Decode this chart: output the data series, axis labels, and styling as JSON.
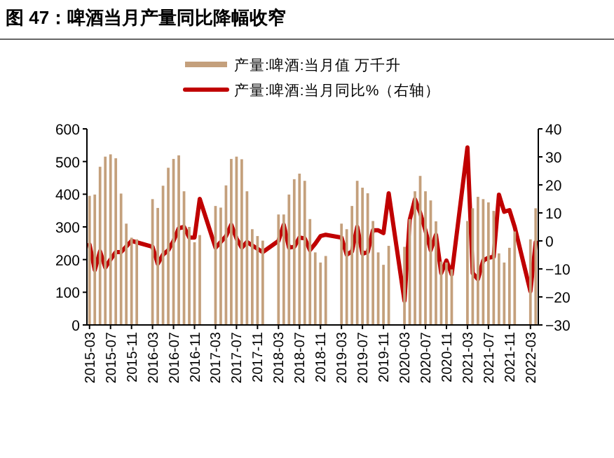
{
  "chart_data": {
    "type": "bar",
    "title": "图 47：啤酒当月产量同比降幅收窄",
    "categories": [
      "2015-03",
      null,
      null,
      null,
      "2015-07",
      null,
      null,
      null,
      "2015-11",
      null,
      null,
      null,
      "2016-03",
      null,
      null,
      null,
      "2016-07",
      null,
      null,
      null,
      "2016-11",
      null,
      null,
      null,
      "2017-03",
      null,
      null,
      null,
      "2017-07",
      null,
      null,
      null,
      "2017-11",
      null,
      null,
      null,
      "2018-03",
      null,
      null,
      null,
      "2018-07",
      null,
      null,
      null,
      "2018-11",
      null,
      null,
      null,
      "2019-03",
      null,
      null,
      null,
      "2019-07",
      null,
      null,
      null,
      "2019-11",
      null,
      null,
      null,
      "2020-03",
      null,
      null,
      null,
      "2020-07",
      null,
      null,
      null,
      "2020-11",
      null,
      null,
      null,
      "2021-03",
      null,
      null,
      null,
      "2021-07",
      null,
      null,
      null,
      "2021-11",
      null,
      null,
      null,
      "2022-03",
      null
    ],
    "series": [
      {
        "name": "产量:啤酒:当月值 万千升",
        "color": "#c4a07c",
        "values": [
          395,
          399,
          484,
          515,
          522,
          510,
          402,
          310,
          267,
          262,
          null,
          null,
          385,
          358,
          426,
          481,
          508,
          519,
          409,
          300,
          253,
          275,
          null,
          null,
          364,
          359,
          427,
          508,
          515,
          507,
          409,
          293,
          272,
          258,
          null,
          null,
          338,
          338,
          399,
          446,
          463,
          441,
          324,
          222,
          191,
          211,
          null,
          null,
          310,
          293,
          364,
          441,
          420,
          403,
          318,
          222,
          184,
          242,
          null,
          null,
          239,
          324,
          409,
          456,
          409,
          381,
          317,
          194,
          191,
          170,
          null,
          null,
          318,
          357,
          392,
          385,
          375,
          349,
          219,
          191,
          236,
          286,
          null,
          null,
          262,
          357
        ]
      },
      {
        "name": "产量:啤酒:当月同比%（右轴）",
        "type": "line",
        "axis": "y2",
        "color": "#c00000",
        "values": [
          -1.3,
          -10.4,
          -3.7,
          -9.5,
          -6.6,
          -4,
          -4,
          -2,
          0,
          -0.5,
          null,
          null,
          -2.1,
          -8.2,
          -4.9,
          -3.3,
          0,
          4.5,
          5,
          1.2,
          1.2,
          15,
          null,
          null,
          -2.4,
          -0.4,
          1.7,
          5.8,
          0.9,
          -2.4,
          -0.4,
          -1.6,
          -2.8,
          -4,
          null,
          null,
          0,
          5.8,
          -2.4,
          -2.1,
          1.2,
          0.9,
          -3.3,
          -1,
          1.7,
          2.2,
          null,
          null,
          1.2,
          -4.9,
          -3.8,
          5,
          -4.6,
          -4,
          3.8,
          3.8,
          2.8,
          17,
          null,
          null,
          -21.4,
          7.5,
          14.9,
          10,
          3.7,
          -3.3,
          2.2,
          -11.5,
          -7,
          -12,
          null,
          null,
          33.4,
          -11.5,
          -13.7,
          -7,
          -6,
          -5.7,
          16.5,
          10.4,
          11,
          5,
          null,
          null,
          -18,
          -0.5
        ]
      }
    ],
    "ylim": [
      0,
      600
    ],
    "yticks": [
      0,
      100,
      200,
      300,
      400,
      500,
      600
    ],
    "y2lim": [
      -30,
      40
    ],
    "y2ticks": [
      -30,
      -20,
      -10,
      0,
      10,
      20,
      30,
      40
    ],
    "legend": "top",
    "grid": false
  }
}
